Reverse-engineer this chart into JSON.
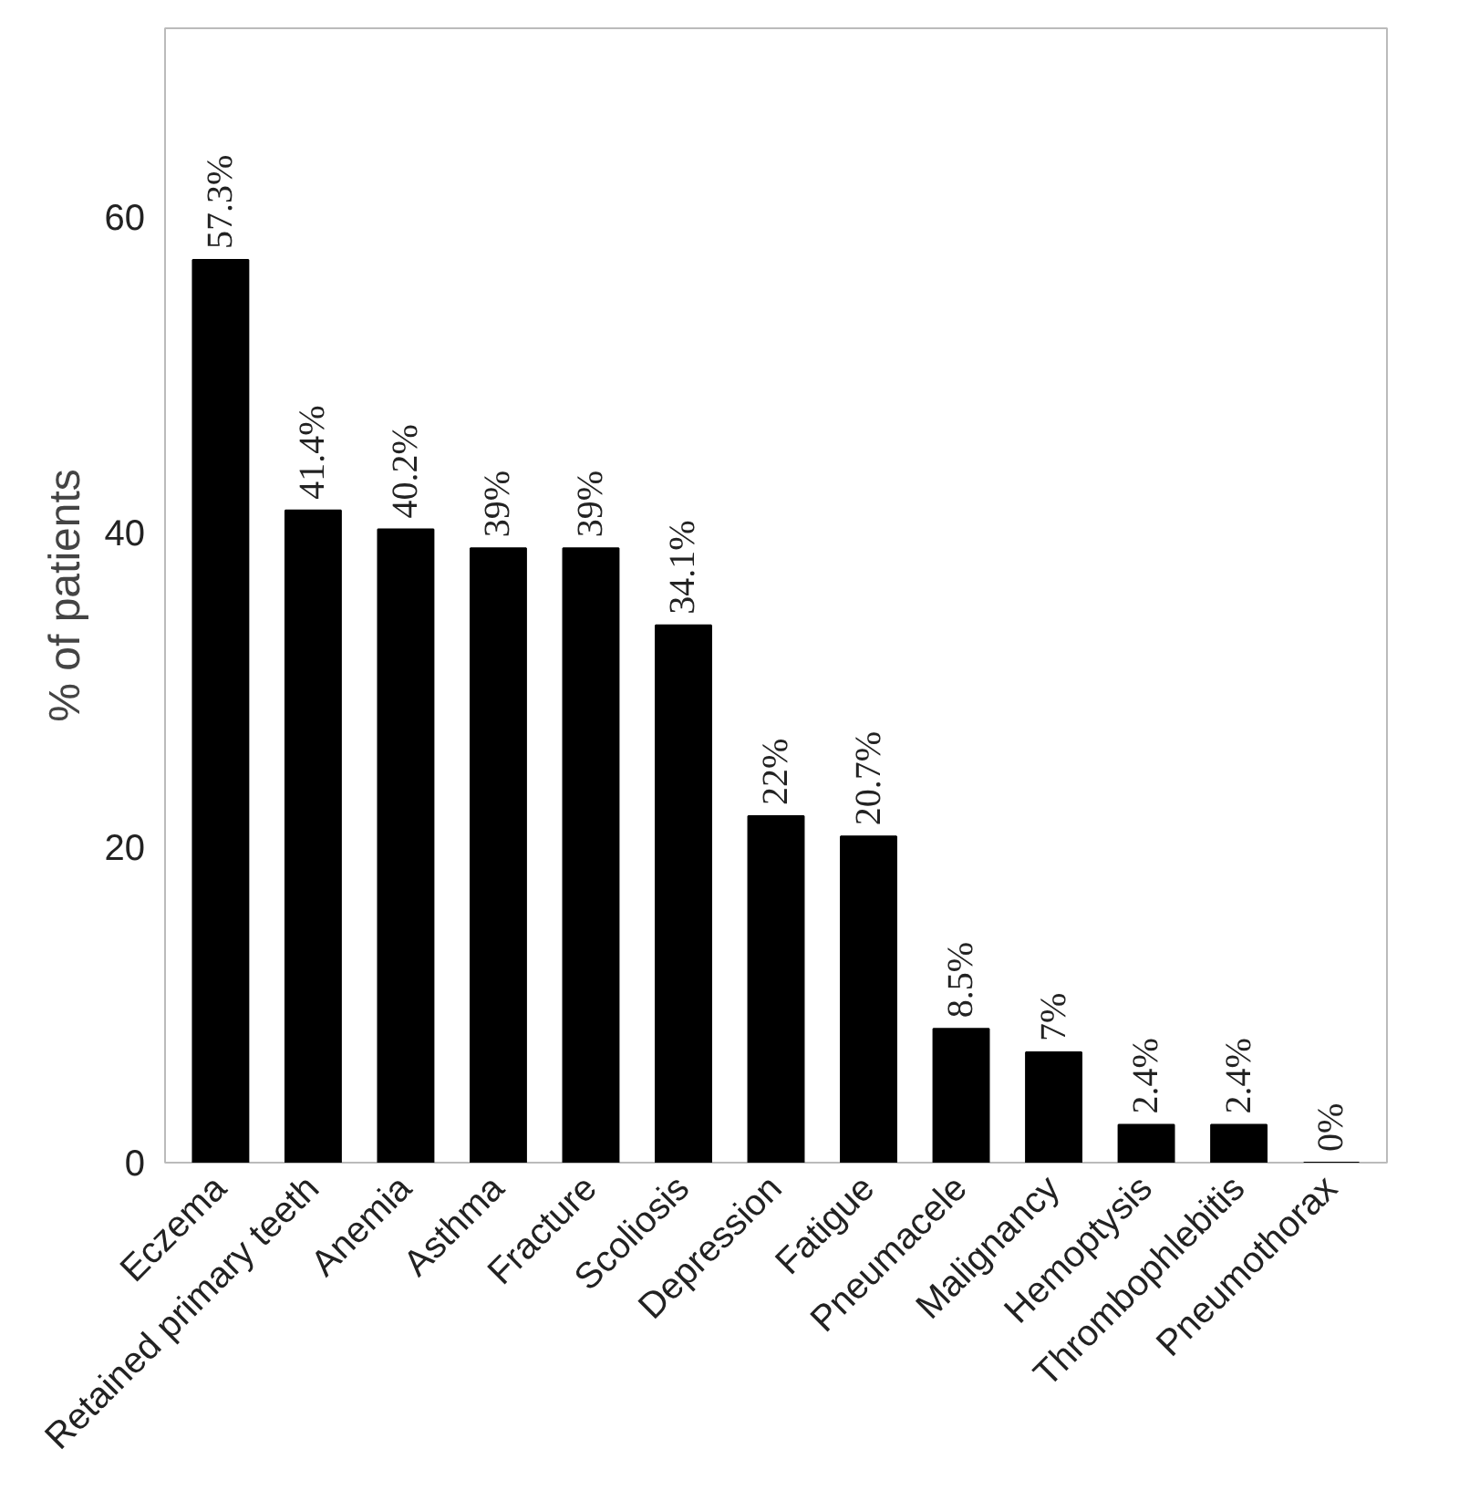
{
  "chart_data": {
    "type": "bar",
    "ylabel": "% of patients",
    "categories": [
      "Eczema",
      "Retained primary teeth",
      "Anemia",
      "Asthma",
      "Fracture",
      "Scoliosis",
      "Depression",
      "Fatigue",
      "Pneumacele",
      "Malignancy",
      "Hemoptysis",
      "Thrombophlebitis",
      "Pneumothorax"
    ],
    "values": [
      57.3,
      41.4,
      40.2,
      39,
      39,
      34.1,
      22,
      20.7,
      8.5,
      7,
      2.4,
      2.4,
      0
    ],
    "value_labels": [
      "57.3%",
      "41.4%",
      "40.2%",
      "39%",
      "39%",
      "34.1%",
      "22%",
      "20.7%",
      "8.5%",
      "7%",
      "2.4%",
      "2.4%",
      "0%"
    ],
    "color": "#000000",
    "ylim": [
      0,
      72
    ],
    "yticks": [
      0,
      20,
      40,
      60
    ],
    "grid": false
  }
}
